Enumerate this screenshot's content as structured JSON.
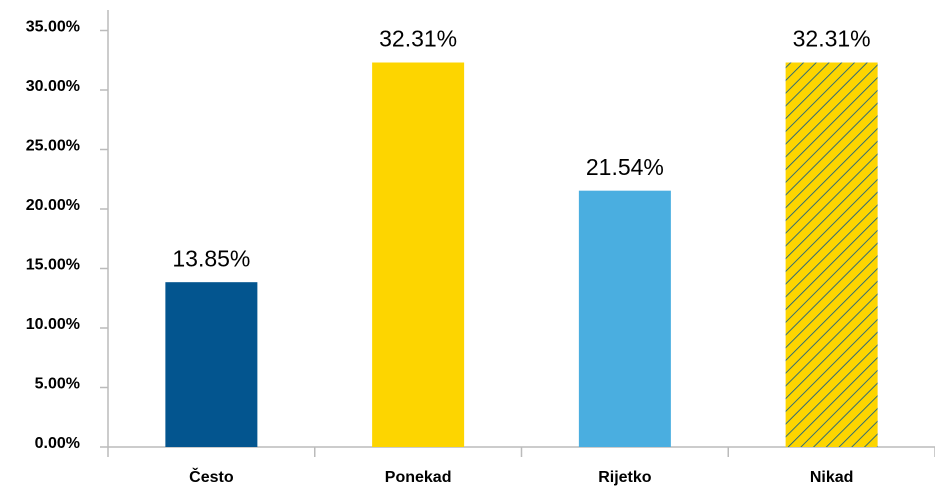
{
  "chart_data": {
    "type": "bar",
    "categories": [
      "Često",
      "Ponekad",
      "Rijetko",
      "Nikad"
    ],
    "values": [
      13.85,
      32.31,
      21.54,
      32.31
    ],
    "value_labels": [
      "13.85%",
      "32.31%",
      "21.54%",
      "32.31%"
    ],
    "colors": [
      "#03558f",
      "#fdd500",
      "#4aaee0",
      "#fdd500"
    ],
    "hatched": [
      false,
      false,
      false,
      true
    ],
    "hatch_color": "#03558f",
    "ylim": [
      0,
      35
    ],
    "yticks": [
      {
        "value": 0,
        "label": "0.00%"
      },
      {
        "value": 5,
        "label": "5.00%"
      },
      {
        "value": 10,
        "label": "10.00%"
      },
      {
        "value": 15,
        "label": "15.00%"
      },
      {
        "value": 20,
        "label": "20.00%"
      },
      {
        "value": 25,
        "label": "25.00%"
      },
      {
        "value": 30,
        "label": "30.00%"
      },
      {
        "value": 35,
        "label": "35.00%"
      }
    ],
    "grid": false
  }
}
